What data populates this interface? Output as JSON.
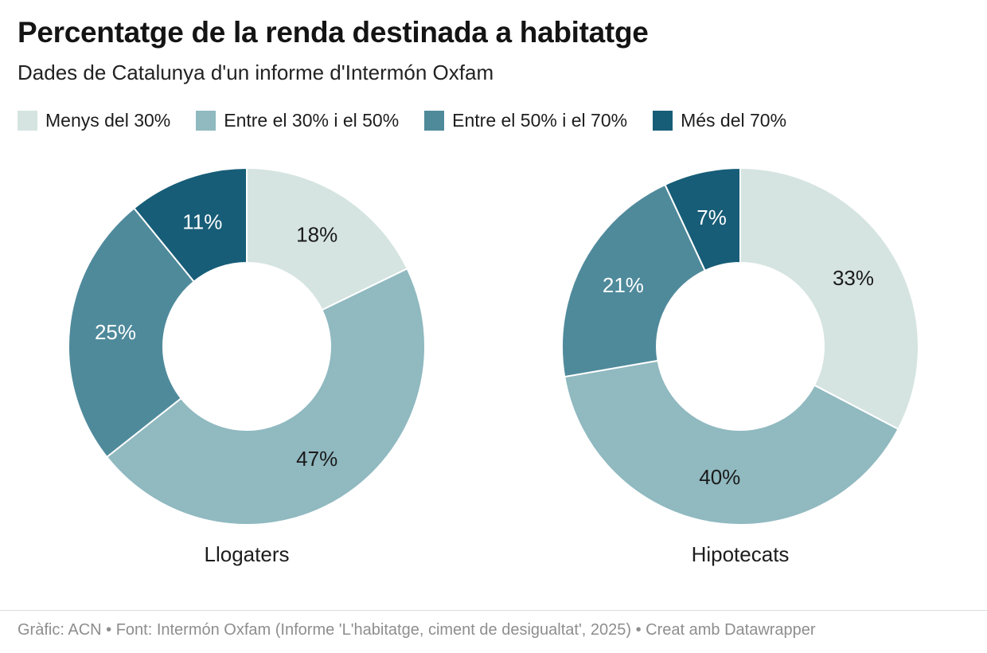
{
  "header": {
    "title": "Percentatge de la renda destinada a habitatge",
    "subtitle": "Dades de Catalunya d'un informe d'Intermón Oxfam"
  },
  "palette": {
    "less_30": "#d5e4e1",
    "between_30_50": "#90b9c0",
    "between_50_70": "#4f8a9b",
    "more_70": "#175d77",
    "label_dark": "#1a1a1a",
    "label_light": "#ffffff",
    "divider": "#dddddd",
    "footer_text": "#8e8e8e"
  },
  "legend": {
    "items": [
      {
        "label": "Menys del 30%",
        "color": "#d5e4e1"
      },
      {
        "label": "Entre el 30% i el 50%",
        "color": "#90b9c0"
      },
      {
        "label": "Entre el 50% i el 70%",
        "color": "#4f8a9b"
      },
      {
        "label": "Més del 70%",
        "color": "#175d77"
      }
    ]
  },
  "chart_data": [
    {
      "type": "pie",
      "subtype": "donut",
      "title": "Llogaters",
      "categories": [
        "Menys del 30%",
        "Entre el 30% i el 50%",
        "Entre el 50% i el 70%",
        "Més del 70%"
      ],
      "values": [
        18,
        47,
        25,
        11
      ],
      "unit": "%",
      "data_labels": [
        "18%",
        "47%",
        "25%",
        "11%"
      ],
      "colors": [
        "#d5e4e1",
        "#90b9c0",
        "#4f8a9b",
        "#175d77"
      ],
      "label_text_colors": [
        "#1a1a1a",
        "#1a1a1a",
        "#ffffff",
        "#ffffff"
      ],
      "start_angle_deg": 0,
      "direction": "clockwise",
      "hole_ratio": 0.47,
      "label_position": "inside",
      "legend_position": "top"
    },
    {
      "type": "pie",
      "subtype": "donut",
      "title": "Hipotecats",
      "categories": [
        "Menys del 30%",
        "Entre el 30% i el 50%",
        "Entre el 50% i el 70%",
        "Més del 70%"
      ],
      "values": [
        33,
        40,
        21,
        7
      ],
      "unit": "%",
      "data_labels": [
        "33%",
        "40%",
        "21%",
        "7%"
      ],
      "colors": [
        "#d5e4e1",
        "#90b9c0",
        "#4f8a9b",
        "#175d77"
      ],
      "label_text_colors": [
        "#1a1a1a",
        "#1a1a1a",
        "#ffffff",
        "#ffffff"
      ],
      "start_angle_deg": 0,
      "direction": "clockwise",
      "hole_ratio": 0.47,
      "label_position": "inside",
      "legend_position": "top"
    }
  ],
  "footer": {
    "credit": "Gràfic: ACN • Font: Intermón Oxfam (Informe 'L'habitatge, ciment de desigualtat', 2025) • Creat amb Datawrapper"
  }
}
